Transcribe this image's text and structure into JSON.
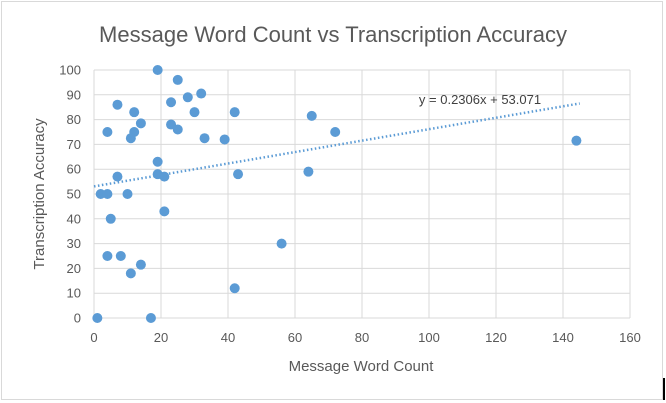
{
  "chart_data": {
    "type": "scatter",
    "title": "Message Word Count vs Transcription Accuracy",
    "xlabel": "Message Word Count",
    "ylabel": "Transcription Accuracy",
    "xlim": [
      0,
      160
    ],
    "ylim": [
      0,
      100
    ],
    "xticks": [
      "0",
      "20",
      "40",
      "60",
      "80",
      "100",
      "120",
      "140",
      "160"
    ],
    "yticks": [
      "0",
      "10",
      "20",
      "30",
      "40",
      "50",
      "60",
      "70",
      "80",
      "90",
      "100"
    ],
    "grid": true,
    "legend": "none",
    "point_color": "#5b9bd5",
    "trendline": {
      "type": "linear",
      "slope": 0.2306,
      "intercept": 53.071,
      "x_range": [
        0,
        145
      ],
      "label": "y = 0.2306x + 53.071",
      "style": "dotted",
      "color": "#5b9bd5"
    },
    "points": [
      {
        "x": 19,
        "y": 100
      },
      {
        "x": 25,
        "y": 96
      },
      {
        "x": 32,
        "y": 90.5
      },
      {
        "x": 28,
        "y": 89
      },
      {
        "x": 23,
        "y": 87
      },
      {
        "x": 7,
        "y": 86
      },
      {
        "x": 12,
        "y": 83
      },
      {
        "x": 30,
        "y": 83
      },
      {
        "x": 42,
        "y": 83
      },
      {
        "x": 65,
        "y": 81.5
      },
      {
        "x": 14,
        "y": 78.5
      },
      {
        "x": 23,
        "y": 78
      },
      {
        "x": 25,
        "y": 76
      },
      {
        "x": 4,
        "y": 75
      },
      {
        "x": 12,
        "y": 75
      },
      {
        "x": 72,
        "y": 75
      },
      {
        "x": 11,
        "y": 72.5
      },
      {
        "x": 33,
        "y": 72.5
      },
      {
        "x": 39,
        "y": 72
      },
      {
        "x": 144,
        "y": 71.5
      },
      {
        "x": 19,
        "y": 63
      },
      {
        "x": 64,
        "y": 59
      },
      {
        "x": 19,
        "y": 58
      },
      {
        "x": 43,
        "y": 58
      },
      {
        "x": 7,
        "y": 57
      },
      {
        "x": 21,
        "y": 57
      },
      {
        "x": 2,
        "y": 50
      },
      {
        "x": 4,
        "y": 50
      },
      {
        "x": 10,
        "y": 50
      },
      {
        "x": 21,
        "y": 43
      },
      {
        "x": 5,
        "y": 40
      },
      {
        "x": 56,
        "y": 30
      },
      {
        "x": 4,
        "y": 25
      },
      {
        "x": 8,
        "y": 25
      },
      {
        "x": 14,
        "y": 21.5
      },
      {
        "x": 11,
        "y": 18
      },
      {
        "x": 42,
        "y": 12
      },
      {
        "x": 1,
        "y": 0
      },
      {
        "x": 17,
        "y": 0
      }
    ]
  }
}
